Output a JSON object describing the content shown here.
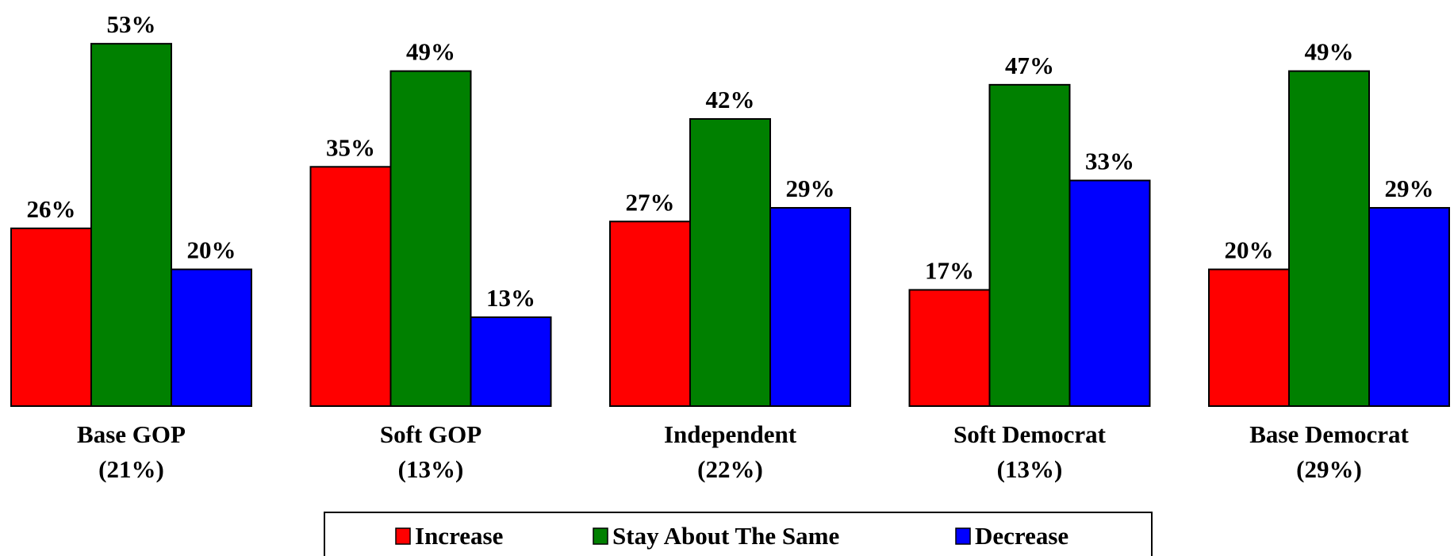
{
  "chart_data": {
    "type": "bar",
    "categories": [
      {
        "name": "Base GOP",
        "share": "(21%)"
      },
      {
        "name": "Soft GOP",
        "share": "(13%)"
      },
      {
        "name": "Independent",
        "share": "(22%)"
      },
      {
        "name": "Soft Democrat",
        "share": "(13%)"
      },
      {
        "name": "Base Democrat",
        "share": "(29%)"
      }
    ],
    "series": [
      {
        "name": "Increase",
        "color": "#ff0000",
        "values": [
          26,
          35,
          27,
          17,
          20
        ]
      },
      {
        "name": "Stay About The Same",
        "color": "#008000",
        "values": [
          53,
          49,
          42,
          47,
          49
        ]
      },
      {
        "name": "Decrease",
        "color": "#0000ff",
        "values": [
          20,
          13,
          29,
          33,
          29
        ]
      }
    ],
    "value_suffix": "%",
    "ylim": [
      0,
      60
    ],
    "grid": false,
    "legend_position": "bottom"
  }
}
